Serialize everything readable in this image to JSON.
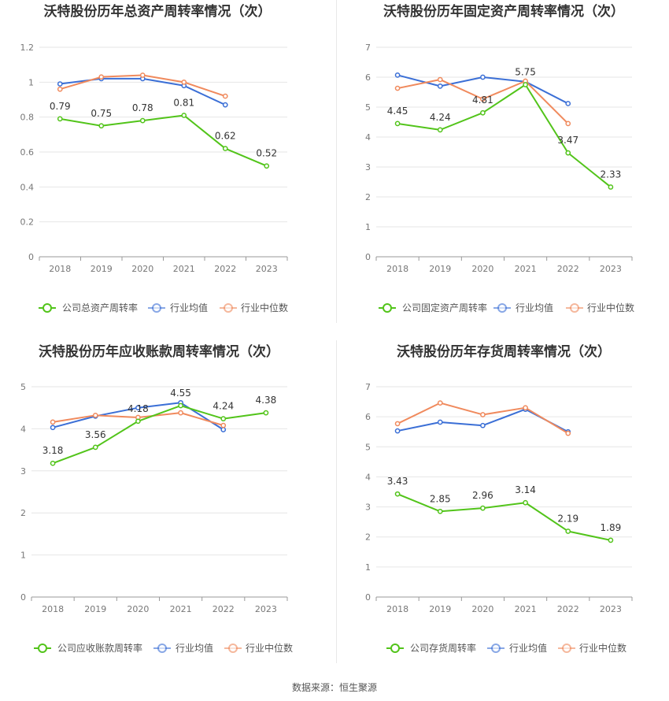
{
  "source_text": "数据来源：恒生聚源",
  "colors": {
    "company": "#52c41a",
    "avg": "#3b6fd6",
    "median": "#f08a5d",
    "grid": "#e6e6e6",
    "axis": "#999999"
  },
  "chart_data": [
    {
      "type": "line",
      "title": "沃特股份历年总资产周转率情况（次）",
      "categories": [
        "2018",
        "2019",
        "2020",
        "2021",
        "2022",
        "2023"
      ],
      "ylim": [
        0,
        1.2
      ],
      "yticks": [
        "0",
        "0.2",
        "0.4",
        "0.6",
        "0.8",
        "1",
        "1.2"
      ],
      "legend_position": "bottom",
      "grid": true,
      "series": [
        {
          "name": "公司总资产周转率",
          "role": "company",
          "values": [
            0.79,
            0.75,
            0.78,
            0.81,
            0.62,
            0.52
          ],
          "labels": [
            "0.79",
            "0.75",
            "0.78",
            "0.81",
            "0.62",
            "0.52"
          ]
        },
        {
          "name": "行业均值",
          "role": "avg",
          "values": [
            0.99,
            1.02,
            1.02,
            0.98,
            0.87,
            null
          ]
        },
        {
          "name": "行业中位数",
          "role": "median",
          "values": [
            0.96,
            1.03,
            1.04,
            1.0,
            0.92,
            null
          ]
        }
      ]
    },
    {
      "type": "line",
      "title": "沃特股份历年固定资产周转率情况（次）",
      "categories": [
        "2018",
        "2019",
        "2020",
        "2021",
        "2022",
        "2023"
      ],
      "ylim": [
        0,
        7
      ],
      "yticks": [
        "0",
        "1",
        "2",
        "3",
        "4",
        "5",
        "6",
        "7"
      ],
      "legend_position": "bottom",
      "grid": true,
      "series": [
        {
          "name": "公司固定资产周转率",
          "role": "company",
          "values": [
            4.45,
            4.24,
            4.81,
            5.75,
            3.47,
            2.33
          ],
          "labels": [
            "4.45",
            "4.24",
            "4.81",
            "5.75",
            "3.47",
            "2.33"
          ]
        },
        {
          "name": "行业均值",
          "role": "avg",
          "values": [
            6.07,
            5.7,
            6.0,
            5.85,
            5.12,
            null
          ]
        },
        {
          "name": "行业中位数",
          "role": "median",
          "values": [
            5.63,
            5.92,
            5.27,
            5.87,
            4.45,
            null
          ]
        }
      ]
    },
    {
      "type": "line",
      "title": "沃特股份历年应收账款周转率情况（次）",
      "categories": [
        "2018",
        "2019",
        "2020",
        "2021",
        "2022",
        "2023"
      ],
      "ylim": [
        0,
        5
      ],
      "yticks": [
        "0",
        "1",
        "2",
        "3",
        "4",
        "5"
      ],
      "legend_position": "bottom",
      "grid": true,
      "series": [
        {
          "name": "公司应收账款周转率",
          "role": "company",
          "values": [
            3.18,
            3.56,
            4.18,
            4.55,
            4.24,
            4.38
          ],
          "labels": [
            "3.18",
            "3.56",
            "4.18",
            "4.55",
            "4.24",
            "4.38"
          ]
        },
        {
          "name": "行业均值",
          "role": "avg",
          "values": [
            4.03,
            4.3,
            4.5,
            4.62,
            3.98,
            null
          ]
        },
        {
          "name": "行业中位数",
          "role": "median",
          "values": [
            4.16,
            4.32,
            4.27,
            4.38,
            4.08,
            null
          ]
        }
      ]
    },
    {
      "type": "line",
      "title": "沃特股份历年存货周转率情况（次）",
      "categories": [
        "2018",
        "2019",
        "2020",
        "2021",
        "2022",
        "2023"
      ],
      "ylim": [
        0,
        7
      ],
      "yticks": [
        "0",
        "1",
        "2",
        "3",
        "4",
        "5",
        "6",
        "7"
      ],
      "legend_position": "bottom",
      "grid": true,
      "series": [
        {
          "name": "公司存货周转率",
          "role": "company",
          "values": [
            3.43,
            2.85,
            2.96,
            3.14,
            2.19,
            1.89
          ],
          "labels": [
            "3.43",
            "2.85",
            "2.96",
            "3.14",
            "2.19",
            "1.89"
          ]
        },
        {
          "name": "行业均值",
          "role": "avg",
          "values": [
            5.53,
            5.82,
            5.71,
            6.25,
            5.5,
            null
          ]
        },
        {
          "name": "行业中位数",
          "role": "median",
          "values": [
            5.77,
            6.46,
            6.07,
            6.3,
            5.45,
            null
          ]
        }
      ]
    }
  ]
}
